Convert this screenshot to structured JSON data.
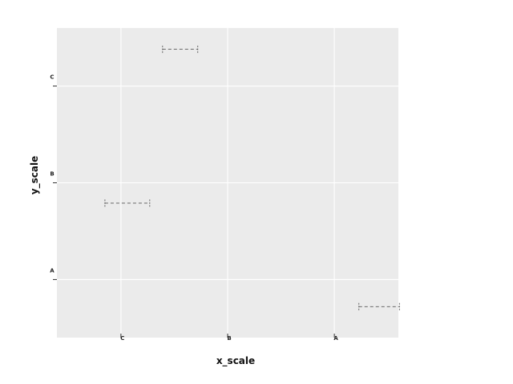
{
  "chart_data": {
    "type": "errorbar-h",
    "xlabel": "x_scale",
    "ylabel": "y_scale",
    "x_categories": [
      "C",
      "B",
      "A"
    ],
    "y_categories": [
      "A",
      "B",
      "C"
    ],
    "segments": [
      {
        "xmin": "C",
        "xmin_offset": -0.15,
        "xmax": "C",
        "xmax_offset": 0.27,
        "y": "B",
        "y_offset": -0.21
      },
      {
        "xmin": "C",
        "xmin_offset": 0.39,
        "xmax": "C",
        "xmax_offset": 0.72,
        "y": "C",
        "y_offset": 0.38
      },
      {
        "xmin": "A",
        "xmin_offset": 0.23,
        "xmax": "A",
        "xmax_offset": 0.61,
        "y": "A",
        "y_offset": -0.28
      }
    ],
    "grid": true,
    "legend": "none",
    "colors": {
      "panel": "#ebebeb",
      "grid": "#ffffff",
      "segment": "#555555"
    }
  }
}
